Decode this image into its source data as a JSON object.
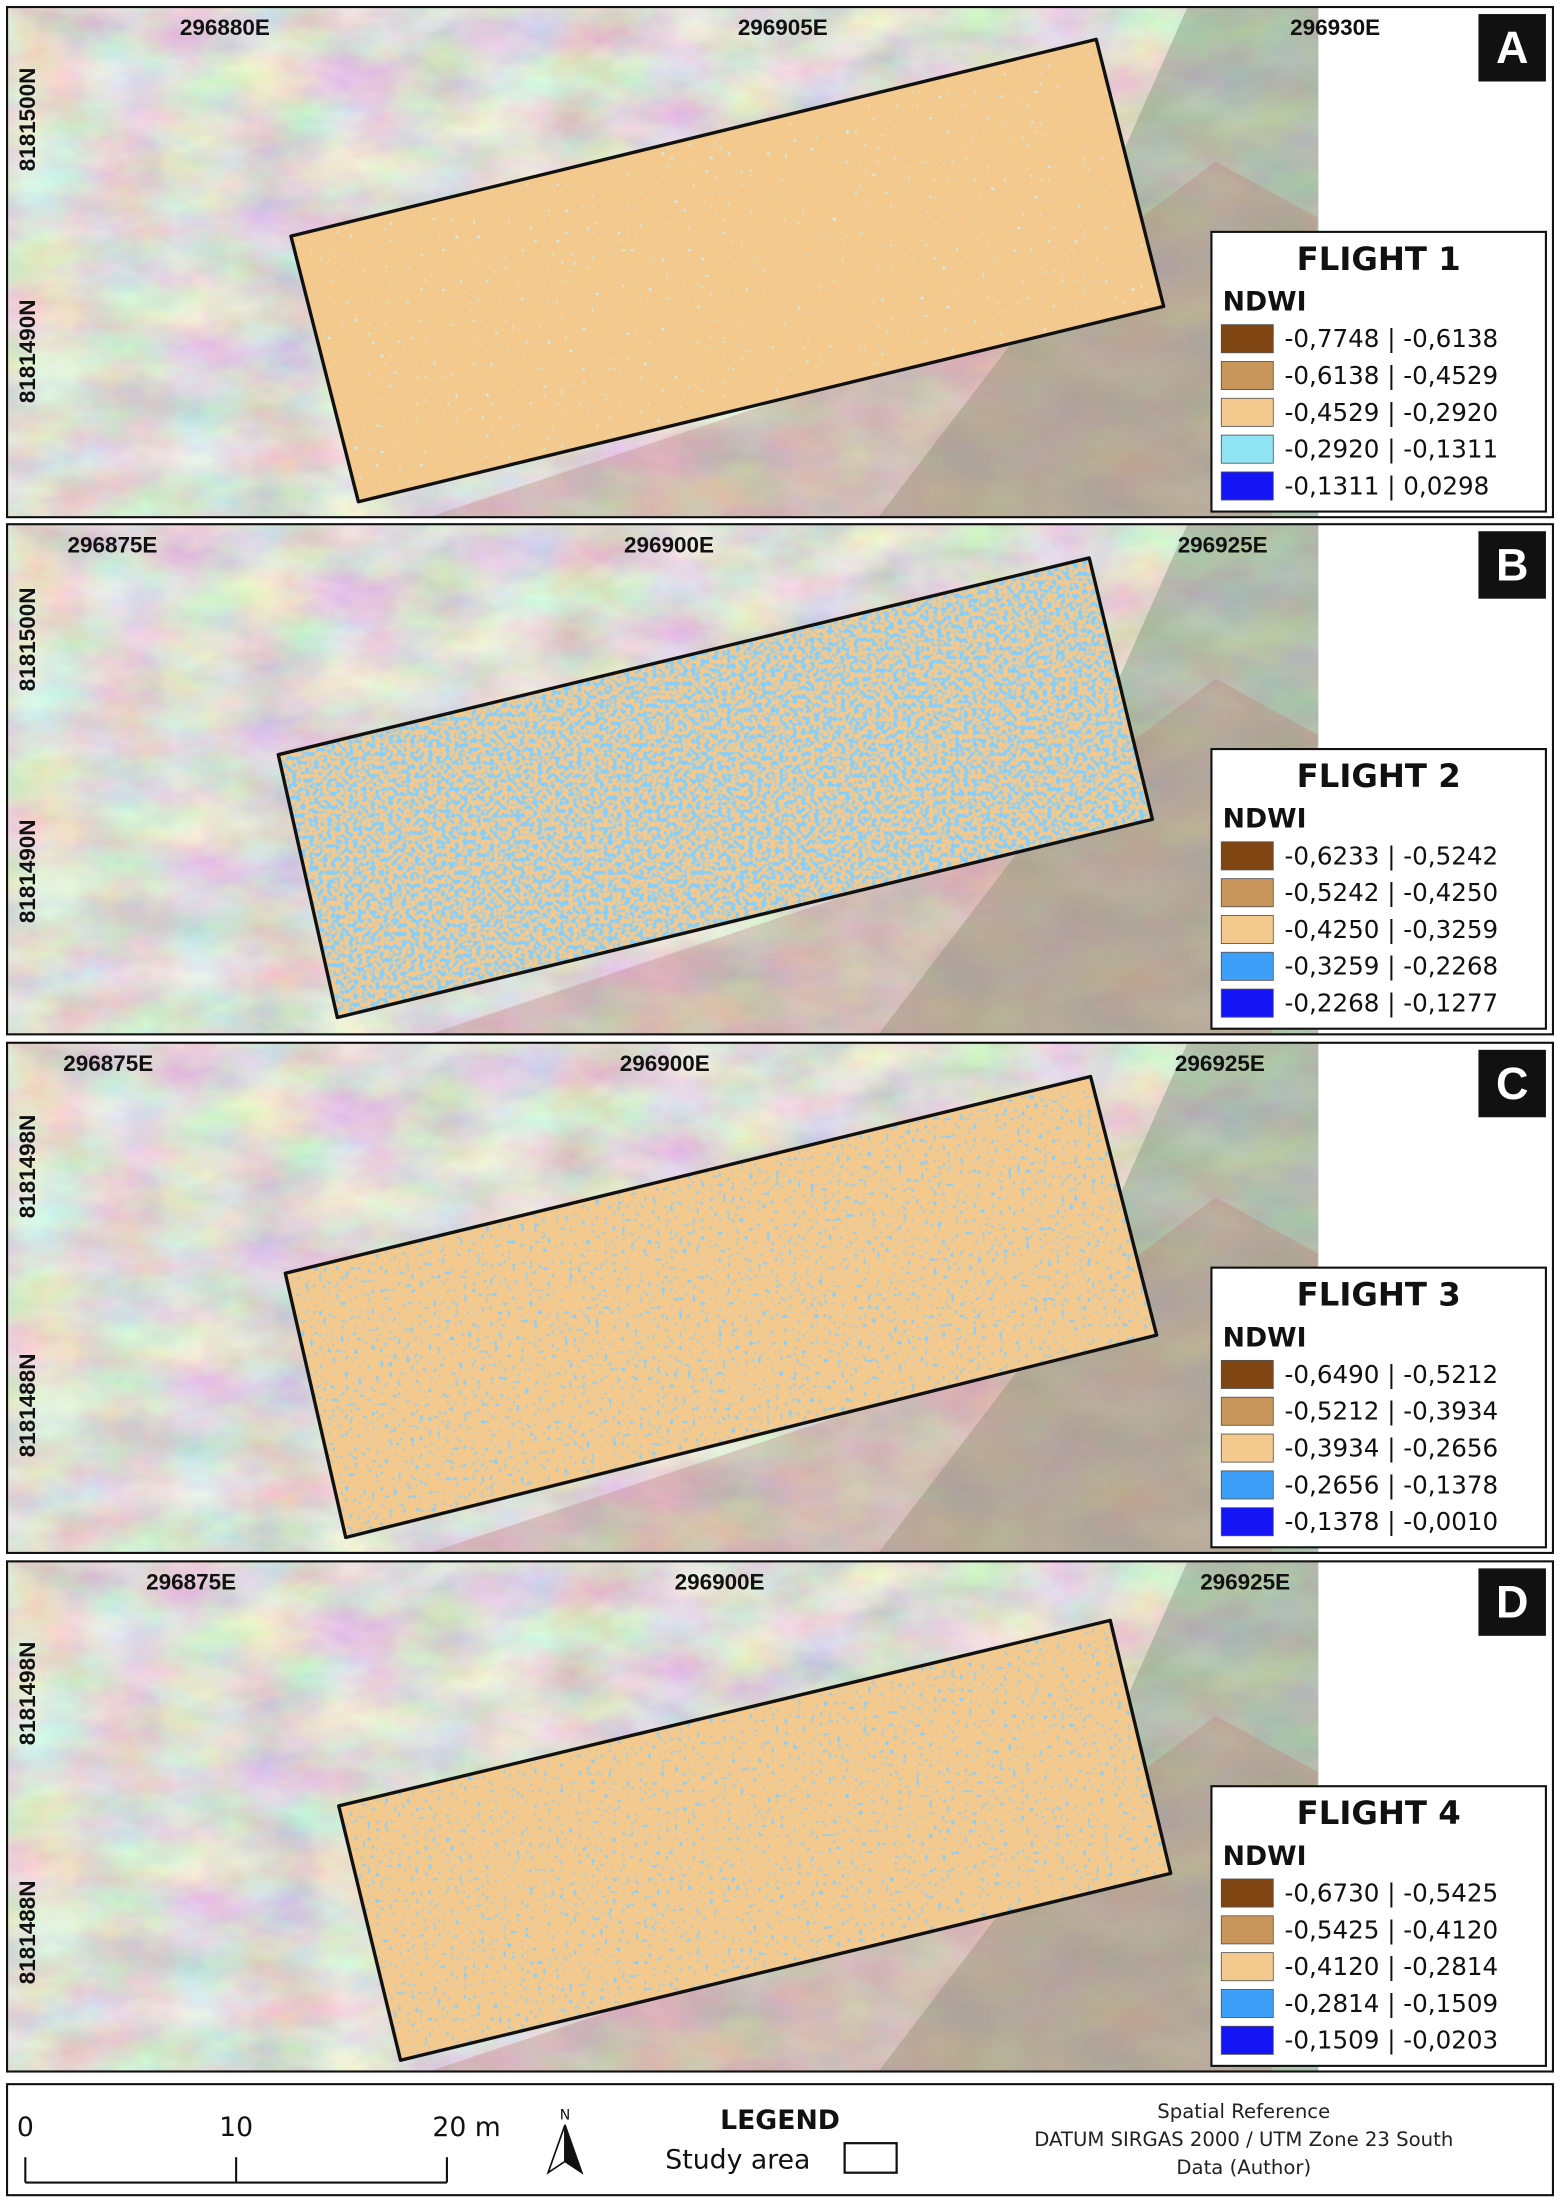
{
  "panels": [
    {
      "letter": "A",
      "title": "FLIGHT 1",
      "legend_title": "NDWI",
      "x_labels": [
        "296880E",
        "296905E",
        "296930E"
      ],
      "y_labels": [
        "8181500N",
        "8181490N"
      ],
      "classes": [
        {
          "label": "-0,7748 | -0,6138",
          "color": "#7f4513"
        },
        {
          "label": "-0,6138 | -0,4529",
          "color": "#c8955a"
        },
        {
          "label": "-0,4529 | -0,2920",
          "color": "#f4c98e"
        },
        {
          "label": "-0,2920 | -0,1311",
          "color": "#8fe3f2"
        },
        {
          "label": "-0,1311 | 0,0298",
          "color": "#1414f5"
        }
      ]
    },
    {
      "letter": "B",
      "title": "FLIGHT 2",
      "legend_title": "NDWI",
      "x_labels": [
        "296875E",
        "296900E",
        "296925E"
      ],
      "y_labels": [
        "8181500N",
        "8181490N"
      ],
      "classes": [
        {
          "label": "-0,6233 | -0,5242",
          "color": "#7f4513"
        },
        {
          "label": "-0,5242 | -0,4250",
          "color": "#c8955a"
        },
        {
          "label": "-0,4250 | -0,3259",
          "color": "#f4c98e"
        },
        {
          "label": "-0,3259 | -0,2268",
          "color": "#3d9ff7"
        },
        {
          "label": "-0,2268 | -0,1277",
          "color": "#1414f5"
        }
      ]
    },
    {
      "letter": "C",
      "title": "FLIGHT 3",
      "legend_title": "NDWI",
      "x_labels": [
        "296875E",
        "296900E",
        "296925E"
      ],
      "y_labels": [
        "8181498N",
        "8181488N"
      ],
      "classes": [
        {
          "label": "-0,6490 | -0,5212",
          "color": "#7f4513"
        },
        {
          "label": "-0,5212 | -0,3934",
          "color": "#c8955a"
        },
        {
          "label": "-0,3934 | -0,2656",
          "color": "#f4c98e"
        },
        {
          "label": "-0,2656 | -0,1378",
          "color": "#3d9ff7"
        },
        {
          "label": "-0,1378 | -0,0010",
          "color": "#1414f5"
        }
      ]
    },
    {
      "letter": "D",
      "title": "FLIGHT 4",
      "legend_title": "NDWI",
      "x_labels": [
        "296875E",
        "296900E",
        "296925E"
      ],
      "y_labels": [
        "8181498N",
        "8181488N"
      ],
      "classes": [
        {
          "label": "-0,6730 | -0,5425",
          "color": "#7f4513"
        },
        {
          "label": "-0,5425 | -0,4120",
          "color": "#c8955a"
        },
        {
          "label": "-0,4120 | -0,2814",
          "color": "#f4c98e"
        },
        {
          "label": "-0,2814 | -0,1509",
          "color": "#3d9ff7"
        },
        {
          "label": "-0,1509 | -0,0203",
          "color": "#1414f5"
        }
      ]
    }
  ],
  "footer": {
    "scale_labels": [
      "0",
      "10",
      "20 m"
    ],
    "north": "N",
    "legend_title": "LEGEND",
    "legend_item": "Study area",
    "reference": [
      "Spatial Reference",
      "DATUM SIRGAS 2000 / UTM Zone 23 South",
      "Data (Author)"
    ]
  }
}
